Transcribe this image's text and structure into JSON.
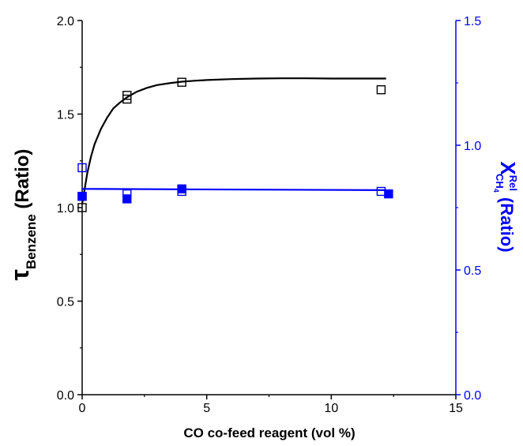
{
  "chart_data": {
    "type": "scatter",
    "xlabel": "CO co-feed reagent (vol %)",
    "xlim": [
      0,
      15
    ],
    "x_ticks": [
      "0",
      "5",
      "10",
      "15"
    ],
    "ylabel_left": {
      "symbol": "τ",
      "subscript": "Benzene",
      "suffix": "(Ratio)"
    },
    "ylim_left": [
      0,
      2
    ],
    "y_ticks_left": [
      "0.0",
      "0.5",
      "1.0",
      "1.5",
      "2.0"
    ],
    "ylabel_right": {
      "symbol": "X",
      "superscript": "Rel",
      "subscript": "CH",
      "subsub": "4",
      "suffix": "(Ratio)"
    },
    "ylim_right": [
      0,
      1.5
    ],
    "y_ticks_right": [
      "0.0",
      "0.5",
      "1.0",
      "1.5"
    ],
    "grid": false,
    "right_axis_color": "#0000ff",
    "series": [
      {
        "axis": "left",
        "marker": "open-square",
        "color": "#000000",
        "x": [
          0,
          0,
          1.8,
          1.8,
          4.0,
          12.0
        ],
        "y": [
          1.0,
          1.06,
          1.58,
          1.6,
          1.67,
          1.63
        ]
      },
      {
        "axis": "left",
        "marker": "line",
        "color": "#000000",
        "x": [
          0,
          0.1,
          0.2,
          0.35,
          0.5,
          0.75,
          1.0,
          1.25,
          1.5,
          1.8,
          2.2,
          2.6,
          3.0,
          3.5,
          4.0,
          4.5,
          5.0,
          6.0,
          7.0,
          8.0,
          9.0,
          10.0,
          11.0,
          12.2
        ],
        "y": [
          1.02,
          1.1,
          1.18,
          1.27,
          1.34,
          1.42,
          1.48,
          1.53,
          1.56,
          1.59,
          1.62,
          1.64,
          1.655,
          1.665,
          1.673,
          1.678,
          1.682,
          1.687,
          1.69,
          1.691,
          1.691,
          1.69,
          1.69,
          1.69
        ]
      },
      {
        "axis": "right",
        "marker": "open-square",
        "color": "#0000ff",
        "x": [
          0,
          1.8,
          4.0,
          12.0
        ],
        "y": [
          0.91,
          0.805,
          0.815,
          0.815
        ]
      },
      {
        "axis": "right",
        "marker": "filled-square",
        "color": "#0000ff",
        "x": [
          0,
          1.8,
          4.0,
          12.3
        ],
        "y": [
          0.795,
          0.785,
          0.825,
          0.805
        ]
      },
      {
        "axis": "right",
        "marker": "line",
        "color": "#0000ff",
        "x": [
          0,
          12.2
        ],
        "y": [
          0.825,
          0.82
        ]
      }
    ]
  }
}
